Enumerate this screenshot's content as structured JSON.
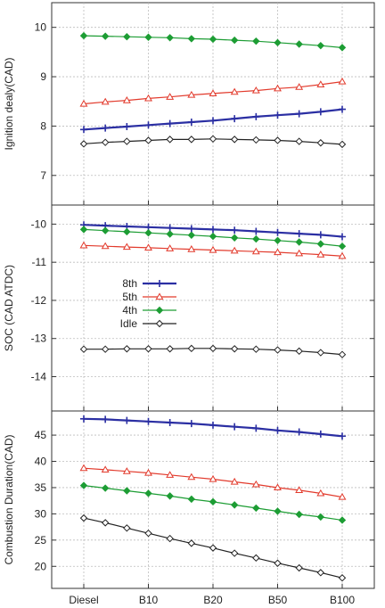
{
  "chart_data": [
    {
      "type": "line",
      "ylabel": "Ignition dealy(CAD)",
      "ylim": [
        6.4,
        10.5
      ],
      "yticks": [
        7,
        8,
        9,
        10
      ],
      "grid": true,
      "x": [
        0,
        1,
        2,
        3,
        4,
        5,
        6,
        7,
        8,
        9,
        10,
        11,
        12
      ],
      "series": [
        {
          "name": "8th",
          "color": "#2b2fa3",
          "marker": "plus",
          "values": [
            7.93,
            7.96,
            7.99,
            8.02,
            8.05,
            8.08,
            8.11,
            8.15,
            8.19,
            8.22,
            8.25,
            8.29,
            8.34
          ]
        },
        {
          "name": "5th",
          "color": "#e23a2c",
          "marker": "triangle",
          "values": [
            8.45,
            8.49,
            8.52,
            8.56,
            8.59,
            8.63,
            8.66,
            8.69,
            8.72,
            8.76,
            8.79,
            8.84,
            8.9
          ]
        },
        {
          "name": "4th",
          "color": "#1d9d34",
          "marker": "diamond",
          "values": [
            9.83,
            9.82,
            9.81,
            9.8,
            9.79,
            9.77,
            9.76,
            9.74,
            9.72,
            9.69,
            9.66,
            9.63,
            9.59
          ]
        },
        {
          "name": "Idle",
          "color": "#222222",
          "marker": "diamond",
          "values": [
            7.64,
            7.67,
            7.69,
            7.71,
            7.73,
            7.73,
            7.74,
            7.73,
            7.72,
            7.71,
            7.69,
            7.66,
            7.63
          ]
        }
      ]
    },
    {
      "type": "line",
      "ylabel": "SOC (CAD ATDC)",
      "ylim": [
        -14.9,
        -9.5
      ],
      "yticks": [
        -10,
        -11,
        -12,
        -13,
        -14
      ],
      "grid": true,
      "x": [
        0,
        1,
        2,
        3,
        4,
        5,
        6,
        7,
        8,
        9,
        10,
        11,
        12
      ],
      "series": [
        {
          "name": "8th",
          "color": "#2b2fa3",
          "marker": "plus",
          "values": [
            -10.02,
            -10.04,
            -10.06,
            -10.08,
            -10.1,
            -10.12,
            -10.14,
            -10.16,
            -10.19,
            -10.22,
            -10.25,
            -10.28,
            -10.33
          ]
        },
        {
          "name": "5th",
          "color": "#e23a2c",
          "marker": "triangle",
          "values": [
            -10.56,
            -10.58,
            -10.6,
            -10.62,
            -10.64,
            -10.66,
            -10.68,
            -10.7,
            -10.72,
            -10.74,
            -10.77,
            -10.8,
            -10.84
          ]
        },
        {
          "name": "4th",
          "color": "#1d9d34",
          "marker": "diamond",
          "values": [
            -10.14,
            -10.17,
            -10.2,
            -10.23,
            -10.26,
            -10.29,
            -10.32,
            -10.36,
            -10.39,
            -10.43,
            -10.47,
            -10.52,
            -10.58
          ]
        },
        {
          "name": "Idle",
          "color": "#222222",
          "marker": "diamond",
          "values": [
            -13.28,
            -13.28,
            -13.27,
            -13.27,
            -13.27,
            -13.26,
            -13.26,
            -13.27,
            -13.28,
            -13.3,
            -13.33,
            -13.37,
            -13.42
          ]
        }
      ]
    },
    {
      "type": "line",
      "xlabel": "",
      "ylabel": "Combustion Duration(CAD)",
      "ylim": [
        15.8,
        49.6
      ],
      "yticks": [
        20,
        25,
        30,
        35,
        40,
        45
      ],
      "grid": true,
      "categories": [
        "Diesel",
        "B10",
        "B20",
        "B50",
        "B100"
      ],
      "x": [
        0,
        1,
        2,
        3,
        4,
        5,
        6,
        7,
        8,
        9,
        10,
        11,
        12
      ],
      "series": [
        {
          "name": "8th",
          "color": "#2b2fa3",
          "marker": "plus",
          "values": [
            48.1,
            48.0,
            47.8,
            47.6,
            47.4,
            47.2,
            46.9,
            46.6,
            46.3,
            45.9,
            45.6,
            45.2,
            44.8
          ]
        },
        {
          "name": "5th",
          "color": "#e23a2c",
          "marker": "triangle",
          "values": [
            38.7,
            38.4,
            38.1,
            37.8,
            37.4,
            37.0,
            36.6,
            36.1,
            35.6,
            35.0,
            34.5,
            33.9,
            33.2
          ]
        },
        {
          "name": "4th",
          "color": "#1d9d34",
          "marker": "diamond",
          "values": [
            35.4,
            34.9,
            34.4,
            33.9,
            33.4,
            32.8,
            32.3,
            31.7,
            31.1,
            30.5,
            29.9,
            29.4,
            28.8
          ]
        },
        {
          "name": "Idle",
          "color": "#222222",
          "marker": "diamond",
          "values": [
            29.2,
            28.3,
            27.3,
            26.3,
            25.3,
            24.4,
            23.5,
            22.5,
            21.6,
            20.6,
            19.7,
            18.8,
            17.8
          ]
        }
      ]
    }
  ],
  "legend": {
    "placement": "middle-left of second panel",
    "entries": [
      {
        "label": "8th",
        "color": "#2b2fa3",
        "marker": "plus"
      },
      {
        "label": "5th",
        "color": "#e23a2c",
        "marker": "triangle"
      },
      {
        "label": "4th",
        "color": "#1d9d34",
        "marker": "diamond"
      },
      {
        "label": "Idle",
        "color": "#222222",
        "marker": "diamond"
      }
    ]
  }
}
